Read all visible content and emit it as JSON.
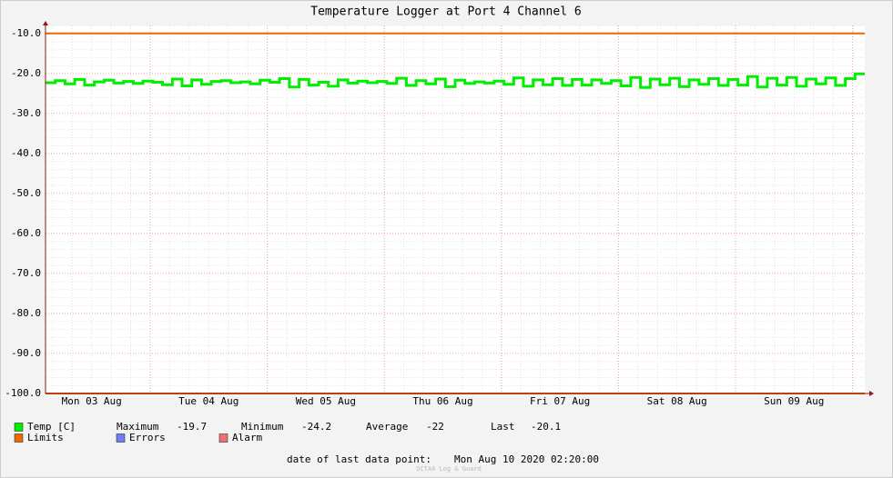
{
  "chart_data": {
    "type": "line",
    "title": "Temperature Logger at Port 4 Channel 6",
    "x_labels": [
      "Mon 03 Aug",
      "Tue 04 Aug",
      "Wed 05 Aug",
      "Thu 06 Aug",
      "Fri 07 Aug",
      "Sat 08 Aug",
      "Sun 09 Aug"
    ],
    "ylim": [
      -100,
      -8
    ],
    "yticks": [
      {
        "value": -10,
        "label": "-10.0"
      },
      {
        "value": -20,
        "label": "-20.0"
      },
      {
        "value": -30,
        "label": "-30.0"
      },
      {
        "value": -40,
        "label": "-40.0"
      },
      {
        "value": -50,
        "label": "-50.0"
      },
      {
        "value": -60,
        "label": "-60.0"
      },
      {
        "value": -70,
        "label": "-70.0"
      },
      {
        "value": -80,
        "label": "-80.0"
      },
      {
        "value": -90,
        "label": "-90.0"
      },
      {
        "value": -100,
        "label": "-100.0"
      }
    ],
    "grid": true,
    "series": [
      {
        "name": "Temp [C]",
        "color": "#00ee00",
        "values": [
          -22.3,
          -21.8,
          -22.6,
          -21.5,
          -22.9,
          -22.1,
          -21.7,
          -22.4,
          -22.0,
          -22.5,
          -21.9,
          -22.2,
          -22.8,
          -21.4,
          -23.1,
          -21.6,
          -22.7,
          -22.0,
          -21.8,
          -22.3,
          -22.1,
          -22.6,
          -21.7,
          -22.2,
          -21.3,
          -23.4,
          -21.5,
          -22.9,
          -22.2,
          -23.2,
          -21.6,
          -22.4,
          -21.9,
          -22.3,
          -22.0,
          -22.5,
          -21.2,
          -23.0,
          -21.8,
          -22.6,
          -21.4,
          -23.3,
          -21.7,
          -22.5,
          -22.1,
          -22.4,
          -21.9,
          -22.7,
          -21.1,
          -23.2,
          -21.6,
          -22.8,
          -21.3,
          -23.0,
          -21.5,
          -22.9,
          -21.6,
          -22.5,
          -21.8,
          -23.1,
          -21.0,
          -23.5,
          -21.4,
          -22.8,
          -21.2,
          -23.3,
          -21.6,
          -22.7,
          -21.3,
          -23.0,
          -21.5,
          -22.9,
          -20.8,
          -23.4,
          -21.2,
          -22.9,
          -21.0,
          -23.2,
          -21.4,
          -22.6,
          -21.1,
          -23.0,
          -21.3,
          -20.1
        ]
      }
    ],
    "limits": {
      "name": "Limits",
      "color": "#ee6600",
      "values": [
        -10,
        -100
      ]
    },
    "legend_items": [
      {
        "name": "Errors",
        "color": "#6e7ef0"
      },
      {
        "name": "Alarm",
        "color": "#f07070"
      }
    ],
    "stats": [
      {
        "label": "Maximum",
        "value": -19.7
      },
      {
        "label": "Minimum",
        "value": -24.2
      },
      {
        "label": "Average",
        "value": -22.0
      },
      {
        "label": "Last",
        "value": -20.1
      }
    ],
    "footer_label": "date of last data point:",
    "footer_value": "Mon Aug 10 2020 02:20:00",
    "watermark": "OCTA4 Log & Guard"
  }
}
